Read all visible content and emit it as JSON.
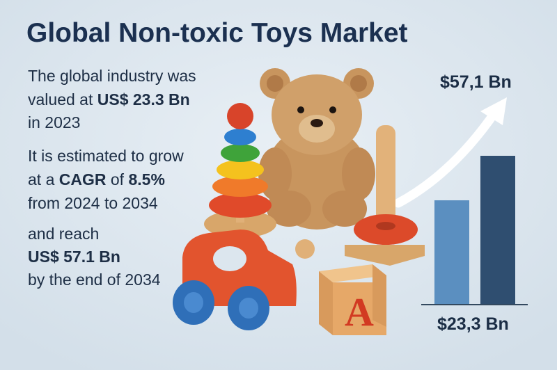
{
  "title": "Global Non-toxic Toys Market",
  "summary": [
    [
      [
        "The global industry was"
      ],
      [
        "valued at ",
        "US$ 23.3 Bn"
      ],
      [
        "in 2023"
      ]
    ],
    [
      [
        "It is estimated to grow"
      ],
      [
        "at a ",
        "CAGR",
        " of ",
        "8.5%"
      ],
      [
        "from 2024 to 2034"
      ]
    ],
    [
      [
        "and reach"
      ],
      [
        "US$ 57.1 Bn"
      ],
      [
        "by the end of 2034"
      ]
    ]
  ],
  "chart_labels": {
    "end_value": "$57,1 Bn",
    "start_value": "$23,3 Bn"
  }
}
